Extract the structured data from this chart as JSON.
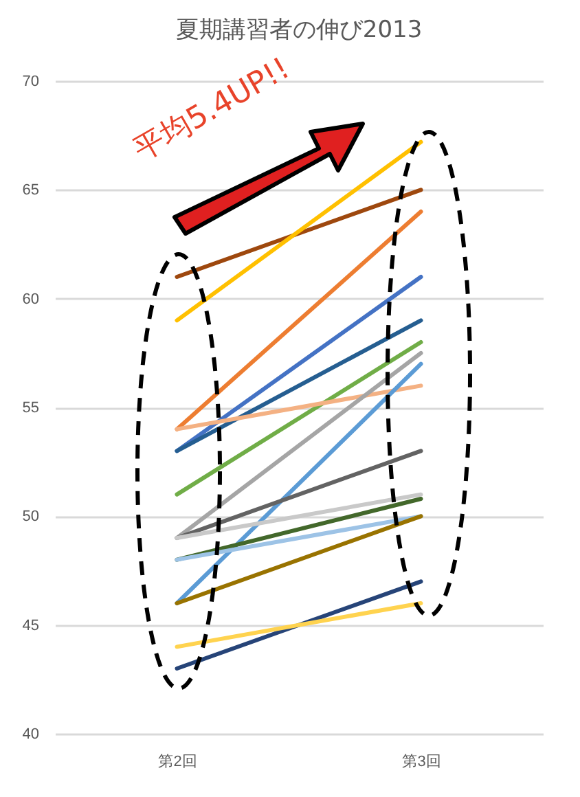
{
  "chart_data": {
    "type": "line",
    "title": "夏期講習者の伸び2013",
    "categories": [
      "第2回",
      "第3回"
    ],
    "series": [
      {
        "color": "#9e480e",
        "values": [
          61,
          65
        ]
      },
      {
        "color": "#ffc000",
        "values": [
          59,
          67.2
        ]
      },
      {
        "color": "#ed7d31",
        "values": [
          54,
          64
        ]
      },
      {
        "color": "#4472c4",
        "values": [
          53,
          61
        ]
      },
      {
        "color": "#255e91",
        "values": [
          53,
          59
        ]
      },
      {
        "color": "#70ad47",
        "values": [
          51,
          58
        ]
      },
      {
        "color": "#f4b183",
        "values": [
          54,
          56
        ]
      },
      {
        "color": "#a5a5a5",
        "values": [
          49,
          57.5
        ]
      },
      {
        "color": "#5b9bd5",
        "values": [
          46,
          57
        ]
      },
      {
        "color": "#636363",
        "values": [
          49,
          53
        ]
      },
      {
        "color": "#c9c9c9",
        "values": [
          49,
          51
        ]
      },
      {
        "color": "#43682b",
        "values": [
          48,
          50.8
        ]
      },
      {
        "color": "#9dc3e6",
        "values": [
          48,
          50
        ]
      },
      {
        "color": "#997300",
        "values": [
          46,
          50
        ]
      },
      {
        "color": "#264478",
        "values": [
          43,
          47
        ]
      },
      {
        "color": "#ffd34f",
        "values": [
          44,
          46
        ]
      }
    ],
    "ylim": [
      40,
      70
    ],
    "yticks": [
      40,
      45,
      50,
      55,
      60,
      65,
      70
    ],
    "grid": "y",
    "legend": false,
    "marker": "none",
    "line_style": "solid",
    "annotations": [
      "平均5.4UP!!"
    ]
  }
}
